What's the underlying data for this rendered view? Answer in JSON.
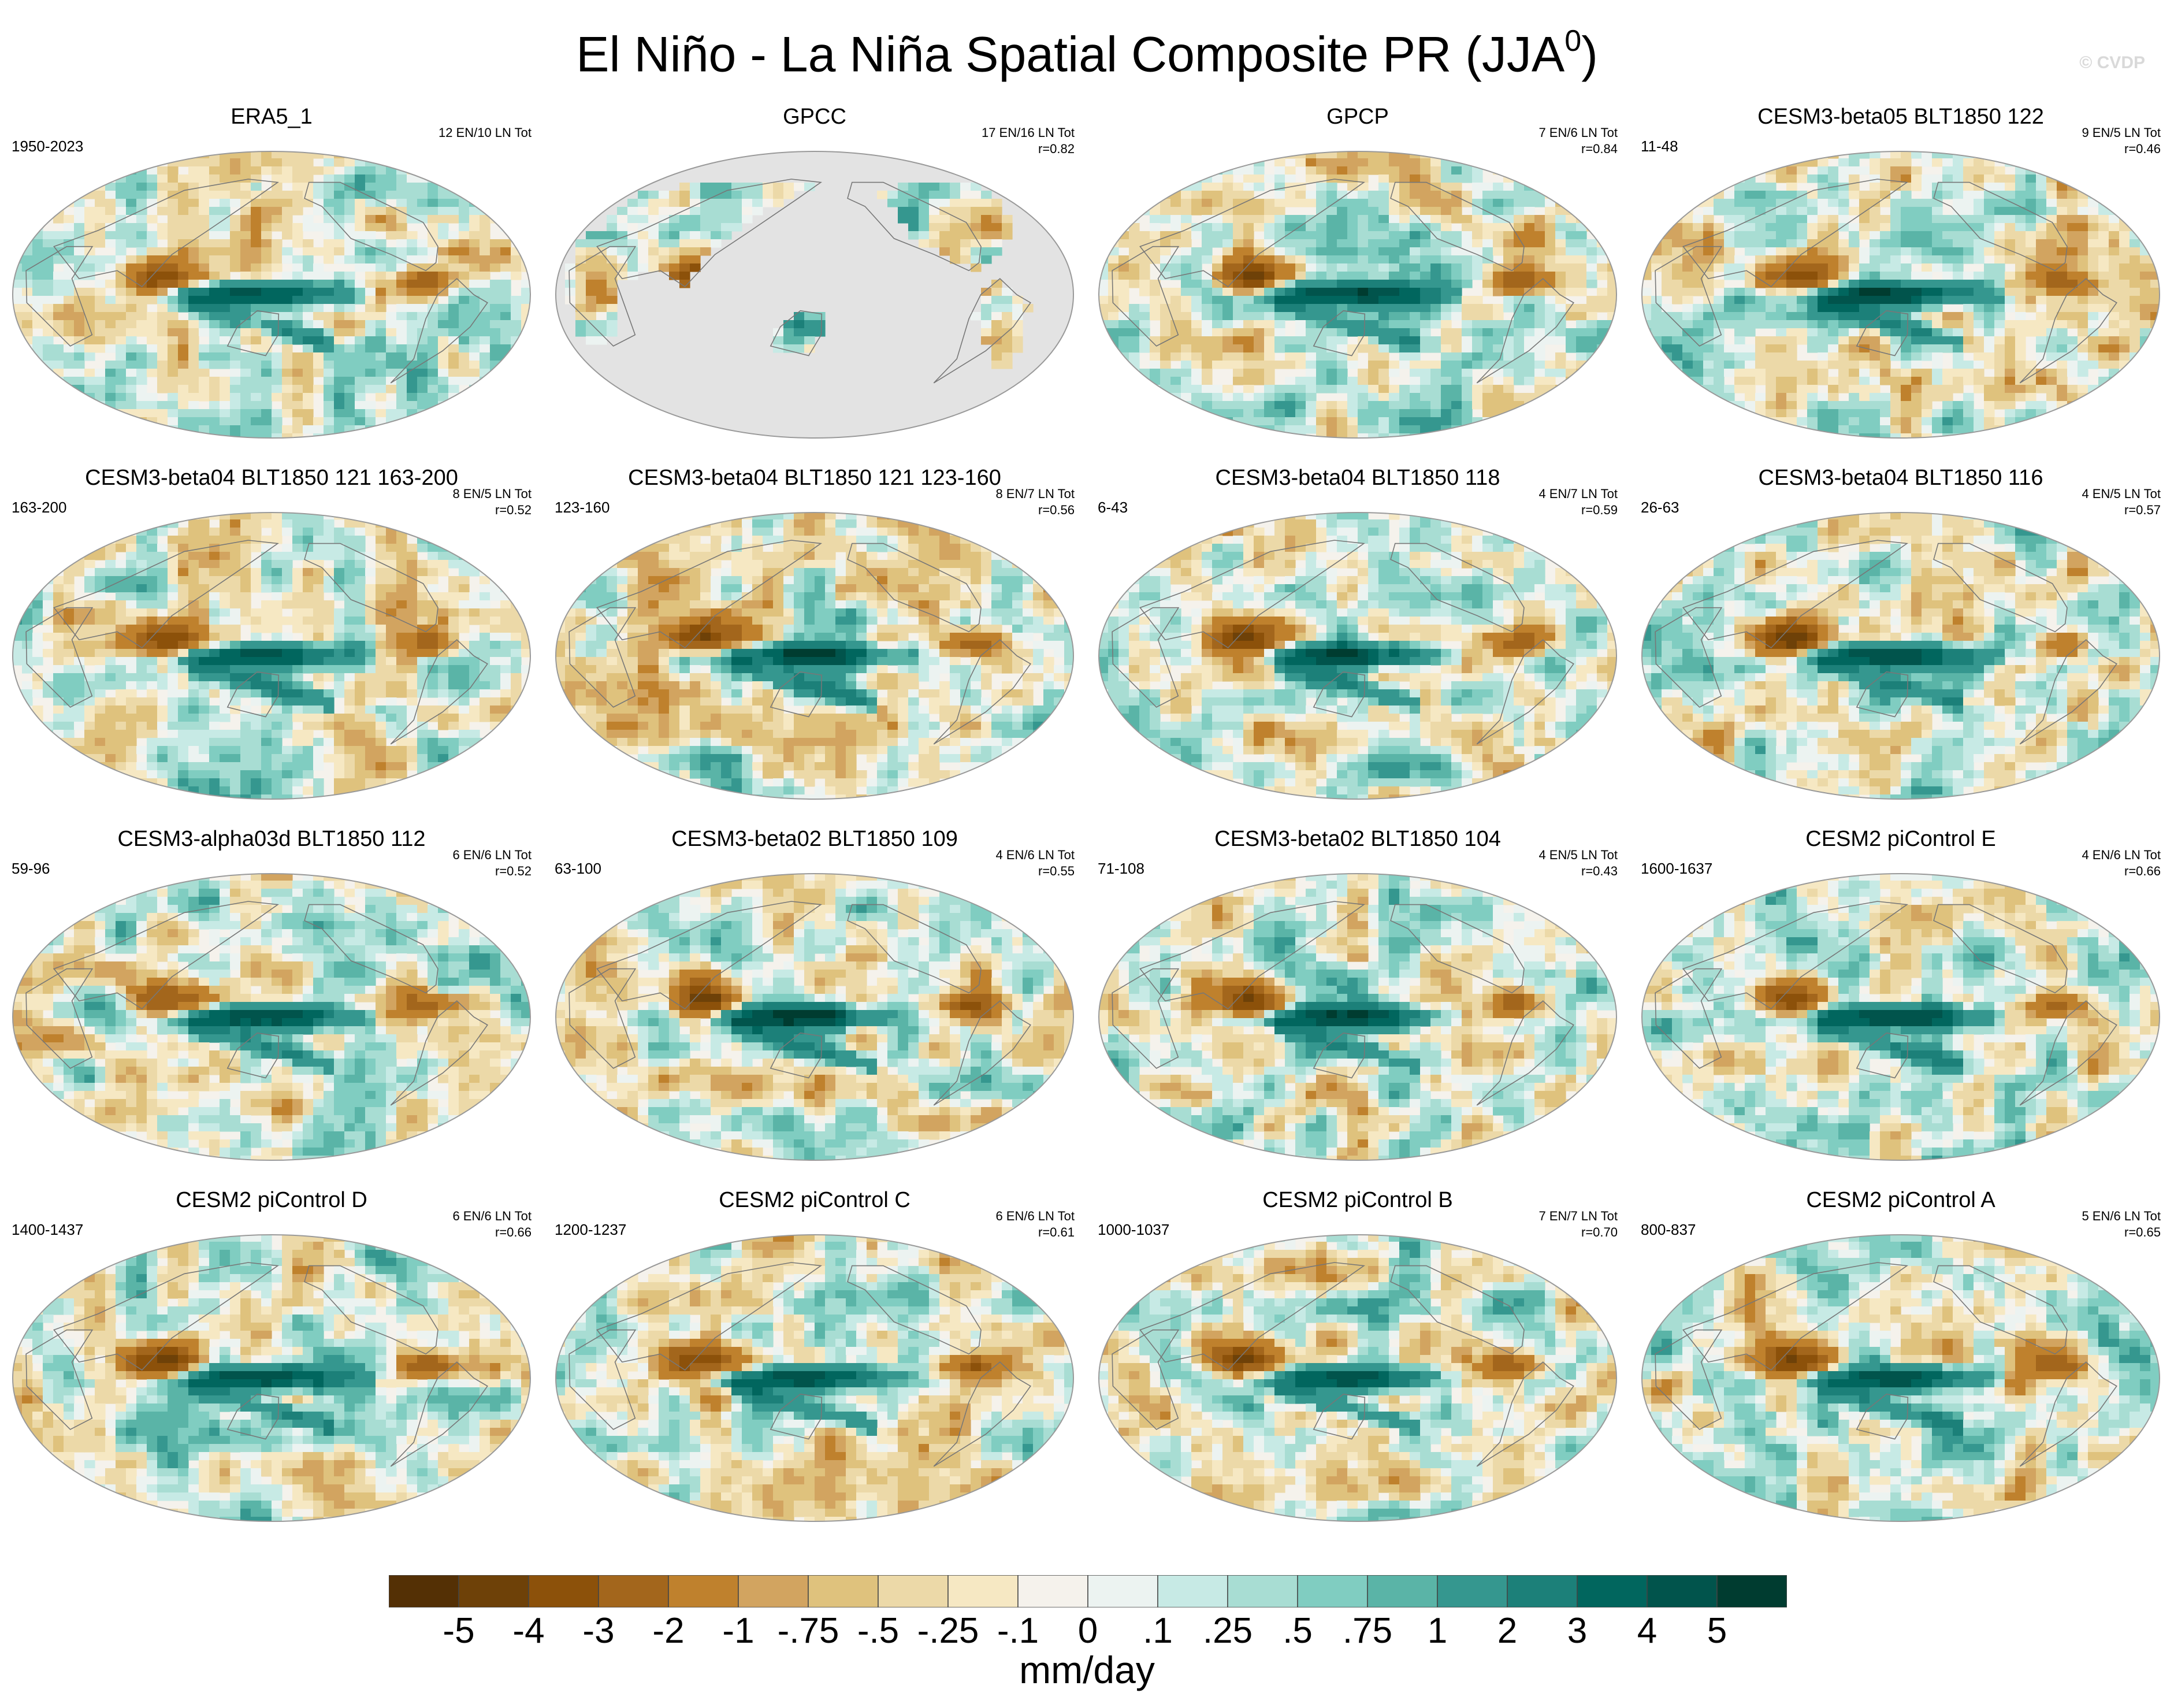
{
  "title": {
    "main": "El Niño - La Niña Spatial Composite PR (JJA",
    "superscript": "0",
    "close": ")"
  },
  "watermark": "© CVDP",
  "panels": [
    {
      "title": "ERA5_1",
      "period": "1950-2023",
      "stats": "12 EN/10 LN Tot",
      "r": "",
      "land_only": false
    },
    {
      "title": "GPCC",
      "period": "",
      "stats": "17 EN/16 LN Tot",
      "r": "r=0.82",
      "land_only": true
    },
    {
      "title": "GPCP",
      "period": "",
      "stats": "7 EN/6 LN Tot",
      "r": "r=0.84",
      "land_only": false
    },
    {
      "title": "CESM3-beta05 BLT1850 122",
      "period": "11-48",
      "stats": "9 EN/5 LN Tot",
      "r": "r=0.46",
      "land_only": false
    },
    {
      "title": "CESM3-beta04 BLT1850 121 163-200",
      "period": "163-200",
      "stats": "8 EN/5 LN Tot",
      "r": "r=0.52",
      "land_only": false
    },
    {
      "title": "CESM3-beta04 BLT1850 121 123-160",
      "period": "123-160",
      "stats": "8 EN/7 LN Tot",
      "r": "r=0.56",
      "land_only": false
    },
    {
      "title": "CESM3-beta04 BLT1850 118",
      "period": "6-43",
      "stats": "4 EN/7 LN Tot",
      "r": "r=0.59",
      "land_only": false
    },
    {
      "title": "CESM3-beta04 BLT1850 116",
      "period": "26-63",
      "stats": "4 EN/5 LN Tot",
      "r": "r=0.57",
      "land_only": false
    },
    {
      "title": "CESM3-alpha03d BLT1850 112",
      "period": "59-96",
      "stats": "6 EN/6 LN Tot",
      "r": "r=0.52",
      "land_only": false
    },
    {
      "title": "CESM3-beta02 BLT1850 109",
      "period": "63-100",
      "stats": "4 EN/6 LN Tot",
      "r": "r=0.55",
      "land_only": false
    },
    {
      "title": "CESM3-beta02 BLT1850 104",
      "period": "71-108",
      "stats": "4 EN/5 LN Tot",
      "r": "r=0.43",
      "land_only": false
    },
    {
      "title": "CESM2 piControl E",
      "period": "1600-1637",
      "stats": "4 EN/6 LN Tot",
      "r": "r=0.66",
      "land_only": false
    },
    {
      "title": "CESM2 piControl D",
      "period": "1400-1437",
      "stats": "6 EN/6 LN Tot",
      "r": "r=0.66",
      "land_only": false
    },
    {
      "title": "CESM2 piControl C",
      "period": "1200-1237",
      "stats": "6 EN/6 LN Tot",
      "r": "r=0.61",
      "land_only": false
    },
    {
      "title": "CESM2 piControl B",
      "period": "1000-1037",
      "stats": "7 EN/7 LN Tot",
      "r": "r=0.70",
      "land_only": false
    },
    {
      "title": "CESM2 piControl A",
      "period": "800-837",
      "stats": "5 EN/6 LN Tot",
      "r": "r=0.65",
      "land_only": false
    }
  ],
  "chart_data": {
    "type": "heatmap",
    "title": "El Niño - La Niña Spatial Composite PR (JJA0)",
    "variable": "PR",
    "units": "mm/day",
    "colorbar": {
      "labels": [
        "-5",
        "-4",
        "-3",
        "-2",
        "-1",
        "-.75",
        "-.5",
        "-.25",
        "-.1",
        "0",
        ".1",
        ".25",
        ".5",
        ".75",
        "1",
        "2",
        "3",
        "4",
        "5"
      ],
      "colors": [
        "#543005",
        "#6e4108",
        "#8c510a",
        "#a3661c",
        "#bf812d",
        "#d2a460",
        "#dfc27d",
        "#ecd9a8",
        "#f6e8c3",
        "#f5f2ec",
        "#ecf3f1",
        "#c7eae5",
        "#a8ddd3",
        "#80cdc1",
        "#5ab4a7",
        "#35978f",
        "#1c8079",
        "#01665e",
        "#01544c",
        "#003c30"
      ]
    },
    "panel_titles": [
      "ERA5_1",
      "GPCC",
      "GPCP",
      "CESM3-beta05 BLT1850 122",
      "CESM3-beta04 BLT1850 121 163-200",
      "CESM3-beta04 BLT1850 121 123-160",
      "CESM3-beta04 BLT1850 118",
      "CESM3-beta04 BLT1850 116",
      "CESM3-alpha03d BLT1850 112",
      "CESM3-beta02 BLT1850 109",
      "CESM3-beta02 BLT1850 104",
      "CESM2 piControl E",
      "CESM2 piControl D",
      "CESM2 piControl C",
      "CESM2 piControl B",
      "CESM2 piControl A"
    ],
    "pattern_correlations": [
      null,
      0.82,
      0.84,
      0.46,
      0.52,
      0.56,
      0.59,
      0.57,
      0.52,
      0.55,
      0.43,
      0.66,
      0.66,
      0.61,
      0.7,
      0.65
    ]
  }
}
